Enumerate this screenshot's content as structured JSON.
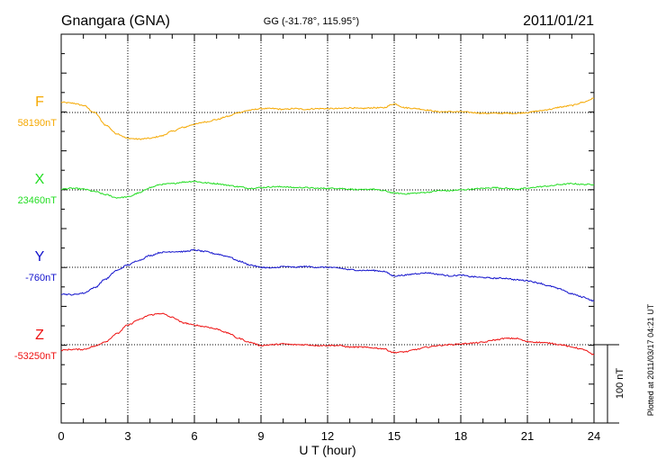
{
  "header": {
    "station": "Gnangara (GNA)",
    "coords": "GG (-31.78°, 115.95°)",
    "date": "2011/01/21"
  },
  "plotted_note": "Plotted at 2011/03/17 04:21  UT",
  "scale_label": "100 nT",
  "chart_data": {
    "type": "line",
    "title": "",
    "xlabel": "U T (hour)",
    "xlim": [
      0,
      24
    ],
    "xticks": [
      0,
      3,
      6,
      9,
      12,
      15,
      18,
      21,
      24
    ],
    "grid": true,
    "ylabel": "",
    "y_units": "nT",
    "scale_bar_nT": 100,
    "series": [
      {
        "name": "F",
        "baseline_label": "58190nT",
        "color": "#f5a800",
        "x": [
          0,
          0.5,
          1,
          1.5,
          2,
          2.5,
          3,
          3.5,
          4,
          4.5,
          5,
          5.5,
          6,
          6.5,
          7,
          7.5,
          8,
          8.5,
          9,
          9.5,
          10,
          10.5,
          11,
          11.5,
          12,
          12.5,
          13,
          13.5,
          14,
          14.5,
          15,
          15.5,
          16,
          16.5,
          17,
          17.5,
          18,
          18.5,
          19,
          19.5,
          20,
          20.5,
          21,
          21.5,
          22,
          22.5,
          23,
          23.5,
          24
        ],
        "values": [
          13,
          12,
          9,
          0,
          -16,
          -27,
          -33,
          -34,
          -33,
          -30,
          -24,
          -19,
          -15,
          -12,
          -9,
          -5,
          0,
          3,
          5,
          5,
          4,
          5,
          4,
          5,
          5,
          5,
          6,
          5,
          6,
          6,
          11,
          6,
          5,
          3,
          1,
          1,
          1,
          0,
          -1,
          -1,
          -1,
          -1,
          0,
          2,
          4,
          7,
          9,
          13,
          18
        ]
      },
      {
        "name": "X",
        "baseline_label": "23460nT",
        "color": "#22dd22",
        "x": [
          0,
          0.5,
          1,
          1.5,
          2,
          2.5,
          3,
          3.5,
          4,
          4.5,
          5,
          5.5,
          6,
          6.5,
          7,
          7.5,
          8,
          8.5,
          9,
          9.5,
          10,
          10.5,
          11,
          11.5,
          12,
          12.5,
          13,
          13.5,
          14,
          14.5,
          15,
          15.5,
          16,
          16.5,
          17,
          17.5,
          18,
          18.5,
          19,
          19.5,
          20,
          20.5,
          21,
          21.5,
          22,
          22.5,
          23,
          23.5,
          24
        ],
        "values": [
          1,
          2,
          1,
          -2,
          -6,
          -10,
          -9,
          -4,
          3,
          7,
          8,
          10,
          11,
          9,
          8,
          6,
          4,
          2,
          3,
          4,
          4,
          3,
          3,
          2,
          2,
          2,
          1,
          0,
          1,
          -1,
          -4,
          -5,
          -4,
          -3,
          -1,
          -1,
          0,
          1,
          2,
          3,
          2,
          1,
          2,
          4,
          5,
          7,
          8,
          7,
          7
        ]
      },
      {
        "name": "Y",
        "baseline_label": "-760nT",
        "color": "#1111cc",
        "x": [
          0,
          0.5,
          1,
          1.5,
          2,
          2.5,
          3,
          3.5,
          4,
          4.5,
          5,
          5.5,
          6,
          6.5,
          7,
          7.5,
          8,
          8.5,
          9,
          9.5,
          10,
          10.5,
          11,
          11.5,
          12,
          12.5,
          13,
          13.5,
          14,
          14.5,
          15,
          15.5,
          16,
          16.5,
          17,
          17.5,
          18,
          18.5,
          19,
          19.5,
          20,
          20.5,
          21,
          21.5,
          22,
          22.5,
          23,
          23.5,
          24
        ],
        "values": [
          -34,
          -35,
          -33,
          -26,
          -15,
          -4,
          3,
          9,
          15,
          19,
          20,
          20,
          22,
          20,
          17,
          14,
          8,
          3,
          0,
          -1,
          1,
          0,
          1,
          0,
          0,
          -1,
          -3,
          -4,
          -4,
          -5,
          -11,
          -10,
          -8,
          -7,
          -9,
          -11,
          -10,
          -12,
          -13,
          -14,
          -14,
          -16,
          -17,
          -20,
          -24,
          -28,
          -34,
          -38,
          -43
        ]
      },
      {
        "name": "Z",
        "baseline_label": "-53250nT",
        "color": "#ee1111",
        "x": [
          0,
          0.5,
          1,
          1.5,
          2,
          2.5,
          3,
          3.5,
          4,
          4.5,
          5,
          5.5,
          6,
          6.5,
          7,
          7.5,
          8,
          8.5,
          9,
          9.5,
          10,
          10.5,
          11,
          11.5,
          12,
          12.5,
          13,
          13.5,
          14,
          14.5,
          15,
          15.5,
          16,
          16.5,
          17,
          17.5,
          18,
          18.5,
          19,
          19.5,
          20,
          20.5,
          21,
          21.5,
          22,
          22.5,
          23,
          23.5,
          24
        ],
        "values": [
          -7,
          -6,
          -6,
          -2,
          4,
          14,
          25,
          32,
          38,
          40,
          35,
          28,
          25,
          23,
          20,
          15,
          8,
          3,
          -1,
          0,
          1,
          0,
          0,
          -1,
          -1,
          -1,
          -3,
          -3,
          -4,
          -5,
          -10,
          -9,
          -6,
          -3,
          -1,
          0,
          1,
          2,
          3,
          6,
          8,
          8,
          4,
          3,
          2,
          0,
          -3,
          -6,
          -13
        ]
      }
    ]
  }
}
